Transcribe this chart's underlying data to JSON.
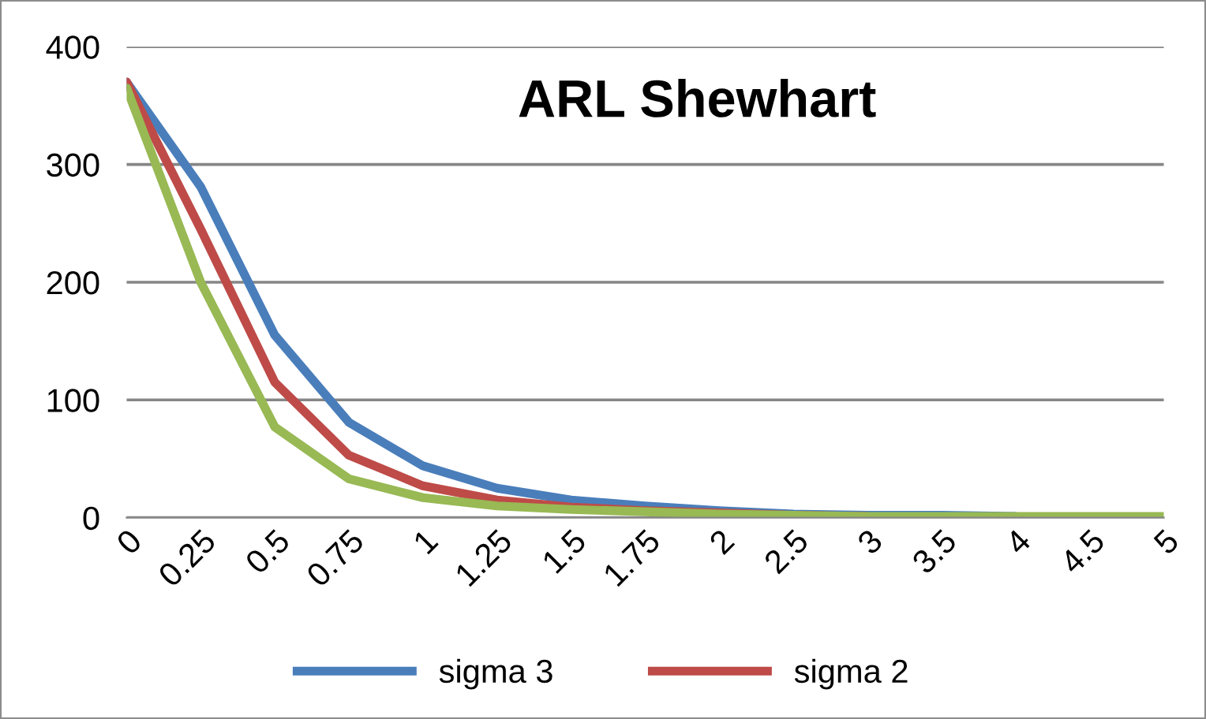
{
  "chart_data": {
    "type": "line",
    "title": "ARL Shewhart",
    "categories": [
      "0",
      "0.25",
      "0.5",
      "0.75",
      "1",
      "1.25",
      "1.5",
      "1.75",
      "2",
      "2.5",
      "3",
      "3.5",
      "4",
      "4.5",
      "5"
    ],
    "series": [
      {
        "name": "sigma 3",
        "color": "#4a7ebb",
        "values": [
          370,
          281,
          155,
          81,
          44,
          25,
          15,
          10,
          6,
          3,
          2,
          2,
          1,
          null,
          null
        ]
      },
      {
        "name": "sigma 2",
        "color": "#be4b48",
        "values": [
          370,
          245,
          115,
          53,
          27,
          15,
          9,
          6,
          4,
          2,
          1,
          null,
          null,
          null,
          null
        ]
      },
      {
        "color": "#98b954",
        "values": [
          365,
          200,
          77,
          33,
          17,
          10,
          7,
          5,
          3,
          2,
          1,
          1,
          1,
          1,
          1
        ]
      }
    ],
    "ylim": [
      0,
      400
    ],
    "yticks": [
      0,
      100,
      200,
      300,
      400
    ],
    "grid": "y",
    "legend": "bottom",
    "marker": "none",
    "line_style": "solid"
  }
}
